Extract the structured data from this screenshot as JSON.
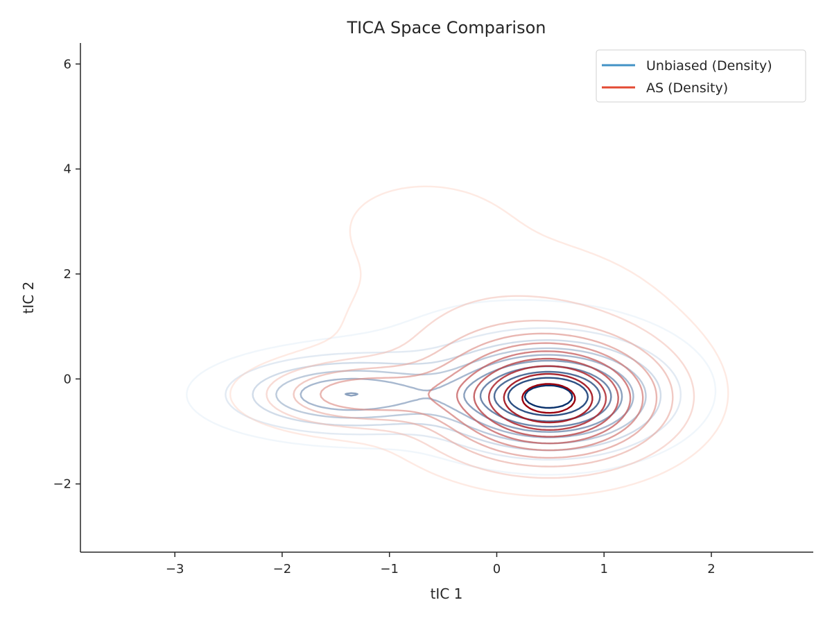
{
  "chart_data": {
    "type": "contour",
    "title": "TICA Space Comparison",
    "xlabel": "tIC 1",
    "ylabel": "tIC 2",
    "xlim": [
      -3.88,
      2.95
    ],
    "ylim": [
      -3.3,
      6.4
    ],
    "x_ticks": [
      {
        "value": -3,
        "label": "−3"
      },
      {
        "value": -2,
        "label": "−2"
      },
      {
        "value": -1,
        "label": "−1"
      },
      {
        "value": 0,
        "label": "0"
      },
      {
        "value": 1,
        "label": "1"
      },
      {
        "value": 2,
        "label": "2"
      }
    ],
    "y_ticks": [
      {
        "value": -2,
        "label": "−2"
      },
      {
        "value": 0,
        "label": "0"
      },
      {
        "value": 2,
        "label": "2"
      },
      {
        "value": 4,
        "label": "4"
      },
      {
        "value": 6,
        "label": "6"
      }
    ],
    "grid": false,
    "legend_position": "top-right",
    "contour_levels": 10,
    "series": [
      {
        "name": "Unbiased (Density)",
        "legend_color": "#4292c6",
        "color_low": "#deebf7",
        "color_high": "#08306b",
        "components": [
          {
            "cx": 0.5,
            "cy": -0.35,
            "sx": 0.55,
            "sy": 0.55,
            "weight": 1.0
          },
          {
            "cx": -1.4,
            "cy": -0.3,
            "sx": 0.65,
            "sy": 0.42,
            "weight": 0.5
          },
          {
            "cx": -0.6,
            "cy": 2.8,
            "sx": 0.45,
            "sy": 0.55,
            "weight": 0.035
          },
          {
            "cx": 0.2,
            "cy": 0.2,
            "sx": 1.1,
            "sy": 1.0,
            "weight": 0.08
          }
        ]
      },
      {
        "name": "AS (Density)",
        "legend_color": "#e34a33",
        "color_low": "#fdd0c0",
        "color_high": "#99000d",
        "components": [
          {
            "cx": 0.5,
            "cy": -0.4,
            "sx": 0.62,
            "sy": 0.7,
            "weight": 1.0
          },
          {
            "cx": -1.3,
            "cy": -0.3,
            "sx": 0.55,
            "sy": 0.38,
            "weight": 0.35
          },
          {
            "cx": -0.7,
            "cy": 3.0,
            "sx": 0.55,
            "sy": 0.6,
            "weight": 0.06
          },
          {
            "cx": 0.1,
            "cy": 0.8,
            "sx": 1.0,
            "sy": 1.2,
            "weight": 0.12
          }
        ]
      }
    ]
  }
}
